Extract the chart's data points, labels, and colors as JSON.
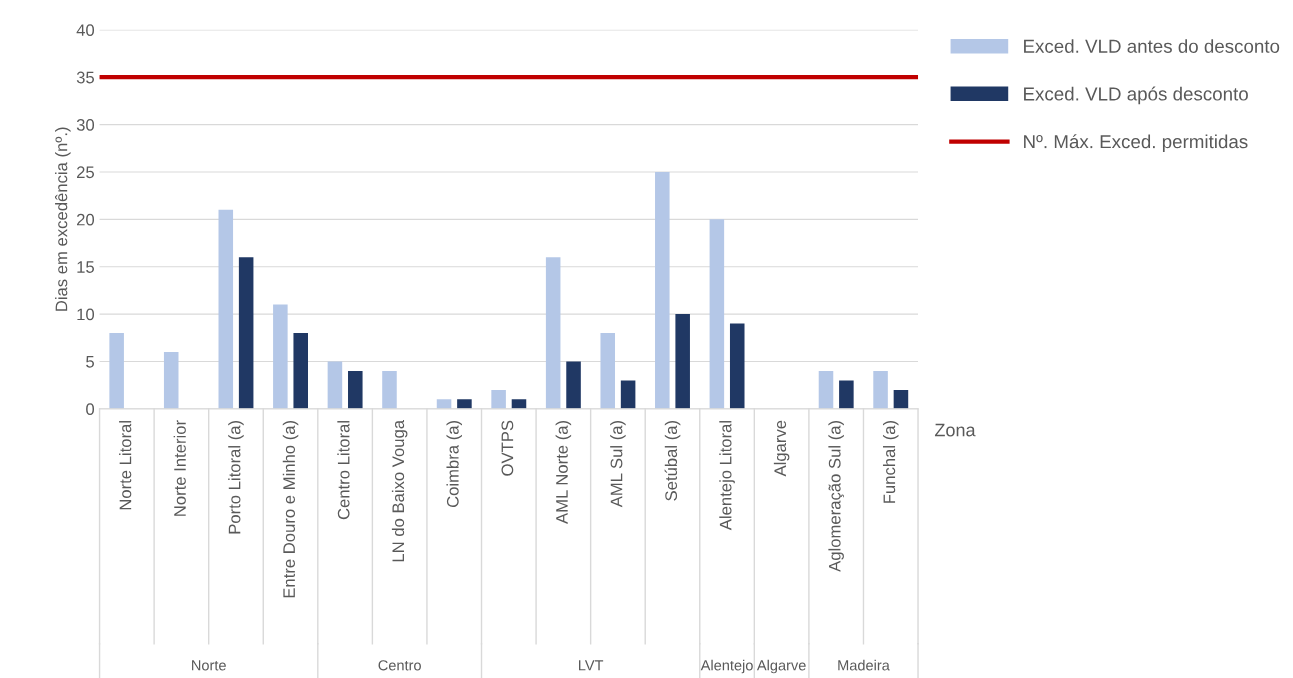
{
  "chart_data": {
    "type": "bar",
    "ylabel": "Dias em excedência (nº.)",
    "xlabel": "Zona",
    "categories": [
      "Norte Litoral",
      "Norte Interior",
      "Porto Litoral (a)",
      "Entre Douro e Minho (a)",
      "Centro Litoral",
      "LN do Baixo Vouga",
      "Coimbra (a)",
      "OVTPS",
      "AML Norte (a)",
      "AML Sul (a)",
      "Setúbal (a)",
      "Alentejo Litoral",
      "Algarve",
      "Aglomeração Sul (a)",
      "Funchal (a)"
    ],
    "series": [
      {
        "name": "Exced. VLD antes do desconto",
        "color": "#b4c7e7",
        "values": [
          8,
          6,
          21,
          11,
          5,
          4,
          1,
          2,
          16,
          8,
          25,
          20,
          0,
          4,
          4
        ]
      },
      {
        "name": "Exced. VLD após desconto",
        "color": "#203864",
        "values": [
          0,
          0,
          16,
          8,
          4,
          0,
          1,
          1,
          5,
          3,
          10,
          9,
          0,
          3,
          2
        ]
      }
    ],
    "ref_lines": [
      {
        "axis": "y",
        "value": 35,
        "label": "Nº. Máx. Exced. permitidas",
        "color": "#c00000"
      }
    ],
    "annotations": [
      "Norte",
      "Centro",
      "LVT",
      "Alentejo",
      "Algarve",
      "Madeira"
    ],
    "ylim": [
      0,
      40
    ],
    "yticks": [
      0,
      5,
      10,
      15,
      20,
      25,
      30,
      35,
      40
    ],
    "grid": "y",
    "legend": "right"
  }
}
